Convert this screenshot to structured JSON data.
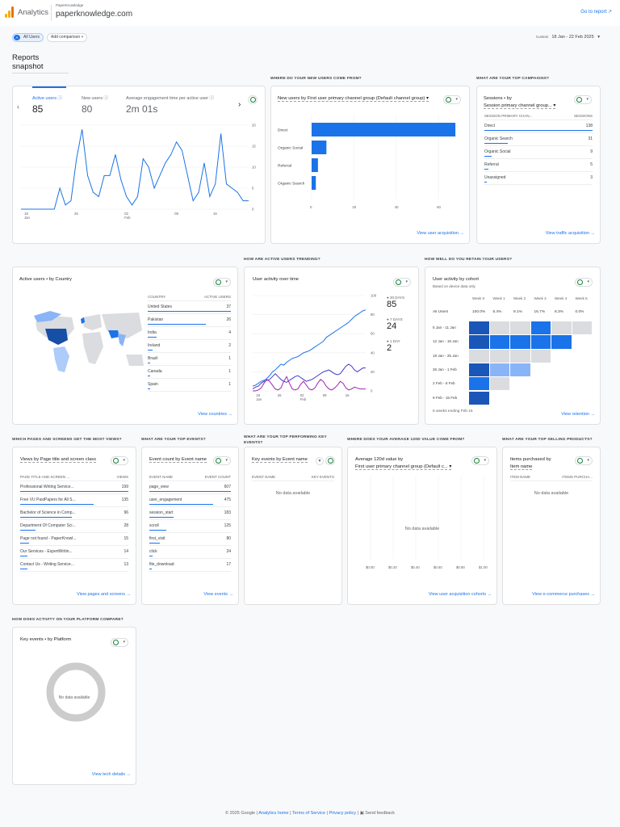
{
  "header": {
    "app_name": "Analytics",
    "account": "PaperKnowledge",
    "property": "paperknowledge.com",
    "go_to_report": "Go to report"
  },
  "filters": {
    "all_users": "All Users",
    "avatar_letter": "A",
    "add_comparison": "Add comparison",
    "date_label": "Custom",
    "date_range": "18 Jan - 22 Feb 2025"
  },
  "page_title": "Reports snapshot",
  "overview": {
    "metrics": [
      {
        "label": "Active users",
        "value": "85"
      },
      {
        "label": "New users",
        "value": "80"
      },
      {
        "label": "Average engagement time per active user",
        "value": "2m 01s"
      }
    ],
    "y_ticks": [
      "20",
      "15",
      "10",
      "5",
      "0"
    ],
    "x_ticks": [
      "19\nJan",
      "26",
      "02\nFeb",
      "09",
      "16"
    ]
  },
  "acquisition": {
    "section": "WHERE DO YOUR NEW USERS COME FROM?",
    "title": "New users by First user primary channel group (Default channel group)",
    "chart_data": {
      "type": "bar",
      "categories": [
        "Direct",
        "Organic Social",
        "Referral",
        "Organic Search"
      ],
      "values": [
        68,
        7,
        3,
        2
      ],
      "xlim": [
        0,
        70
      ],
      "x_ticks": [
        "0",
        "20",
        "40",
        "60"
      ]
    },
    "link": "View user acquisition"
  },
  "campaigns": {
    "section": "WHAT ARE YOUR TOP CAMPAIGNS?",
    "title": "Sessions • by",
    "title2": "Session primary channel group...",
    "col1": "SESSION PRIMARY CHAN...",
    "col2": "SESSIONS",
    "rows": [
      {
        "label": "Direct",
        "value": "138",
        "frac": 1.0
      },
      {
        "label": "Organic Search",
        "value": "31",
        "frac": 0.22
      },
      {
        "label": "Organic Social",
        "value": "9",
        "frac": 0.07
      },
      {
        "label": "Referral",
        "value": "5",
        "frac": 0.04
      },
      {
        "label": "Unassigned",
        "value": "3",
        "frac": 0.02
      }
    ],
    "link": "View traffic acquisition"
  },
  "country": {
    "title": "Active users • by Country",
    "col1": "COUNTRY",
    "col2": "ACTIVE USERS",
    "rows": [
      {
        "label": "United States",
        "value": "37",
        "frac": 1.0
      },
      {
        "label": "Pakistan",
        "value": "26",
        "frac": 0.7
      },
      {
        "label": "India",
        "value": "4",
        "frac": 0.11
      },
      {
        "label": "Ireland",
        "value": "2",
        "frac": 0.06
      },
      {
        "label": "Brazil",
        "value": "1",
        "frac": 0.03
      },
      {
        "label": "Canada",
        "value": "1",
        "frac": 0.03
      },
      {
        "label": "Spain",
        "value": "1",
        "frac": 0.03
      }
    ],
    "link": "View countries"
  },
  "trending": {
    "section": "HOW ARE ACTIVE USERS TRENDING?",
    "title": "User activity over time",
    "legend": [
      {
        "label": "30 DAYS",
        "value": "85",
        "color": "#1a73e8"
      },
      {
        "label": "7 DAYS",
        "value": "24",
        "color": "#4338ca"
      },
      {
        "label": "1 DAY",
        "value": "2",
        "color": "#9c27b0"
      }
    ],
    "y_ticks": [
      "100",
      "80",
      "60",
      "40",
      "20",
      "0"
    ],
    "x_ticks": [
      "19\nJan",
      "26",
      "02\nFeb",
      "09",
      "16"
    ]
  },
  "retention": {
    "section": "HOW WELL DO YOU RETAIN YOUR USERS?",
    "title": "User activity by cohort",
    "subtitle": "Based on device data only",
    "weeks": [
      "Week 0",
      "Week 1",
      "Week 2",
      "Week 3",
      "Week 4",
      "Week 5"
    ],
    "all_users_label": "All Users",
    "all_users_values": [
      "100.0%",
      "5.4%",
      "9.1%",
      "16.7%",
      "8.3%",
      "0.0%"
    ],
    "cohorts": [
      "5 Jan - 11 Jan",
      "12 Jan - 18 Jan",
      "19 Jan - 25 Jan",
      "26 Jan - 1 Feb",
      "2 Feb - 8 Feb",
      "9 Feb - 15 Feb"
    ],
    "footer": "6 weeks ending Feb 15",
    "link": "View retention"
  },
  "pages": {
    "section": "WHICH PAGES AND SCREENS GET THE MOST VIEWS?",
    "title": "Views by Page title and screen class",
    "col1": "PAGE TITLE AND SCREEN ...",
    "col2": "VIEWS",
    "rows": [
      {
        "label": "Professional Writing Service...",
        "value": "199",
        "frac": 1.0
      },
      {
        "label": "Free VU PastPapers for All S...",
        "value": "135",
        "frac": 0.68
      },
      {
        "label": "Bachelor of Science in Comp...",
        "value": "96",
        "frac": 0.48
      },
      {
        "label": "Department Of Computer Sci...",
        "value": "28",
        "frac": 0.14
      },
      {
        "label": "Page not found - PaperKnowl...",
        "value": "15",
        "frac": 0.08
      },
      {
        "label": "Our Services - ExpertWritin...",
        "value": "14",
        "frac": 0.07
      },
      {
        "label": "Contact Us - Writing Service...",
        "value": "13",
        "frac": 0.07
      }
    ],
    "link": "View pages and screens"
  },
  "events": {
    "section": "WHAT ARE YOUR TOP EVENTS?",
    "title": "Event count by Event name",
    "col1": "EVENT NAME",
    "col2": "EVENT COUNT",
    "rows": [
      {
        "label": "page_view",
        "value": "607",
        "frac": 1.0
      },
      {
        "label": "user_engagement",
        "value": "475",
        "frac": 0.78
      },
      {
        "label": "session_start",
        "value": "183",
        "frac": 0.3
      },
      {
        "label": "scroll",
        "value": "125",
        "frac": 0.21
      },
      {
        "label": "first_visit",
        "value": "80",
        "frac": 0.13
      },
      {
        "label": "click",
        "value": "24",
        "frac": 0.04
      },
      {
        "label": "file_download",
        "value": "17",
        "frac": 0.03
      }
    ],
    "link": "View events"
  },
  "key_events": {
    "section": "WHAT ARE YOUR TOP PERFORMING KEY EVENTS?",
    "title": "Key events by Event name",
    "col1": "EVENT NAME",
    "col2": "KEY EVENTS",
    "nodata": "No data available"
  },
  "ltv": {
    "section": "WHERE DOES YOUR AVERAGE 120D VALUE COME FROM?",
    "title": "Average 120d value by",
    "title2": "First user primary channel group (Default c...",
    "nodata": "No data available",
    "x_ticks": [
      "$0.00",
      "$0.20",
      "$0.40",
      "$0.60",
      "$0.80",
      "$1.00"
    ],
    "link": "View user acquisition cohorts"
  },
  "products": {
    "section": "WHAT ARE YOUR TOP SELLING PRODUCTS?",
    "title": "Items purchased by",
    "title2": "Item name",
    "col1": "ITEM NAME",
    "col2": "ITEMS PURCHA...",
    "nodata": "No data available",
    "link": "View e-commerce purchases"
  },
  "platform": {
    "section": "HOW DOES ACTIVITY ON YOUR PLATFORM COMPARE?",
    "title": "Key events • by Platform",
    "nodata": "No data available",
    "link": "View tech details"
  },
  "footer": {
    "copyright": "© 2025 Google |",
    "home": "Analytics home",
    "terms": "Terms of Service",
    "privacy": "Privacy policy",
    "feedback": "Send feedback"
  },
  "colors": {
    "accent": "#1a73e8",
    "positive": "#188038"
  }
}
